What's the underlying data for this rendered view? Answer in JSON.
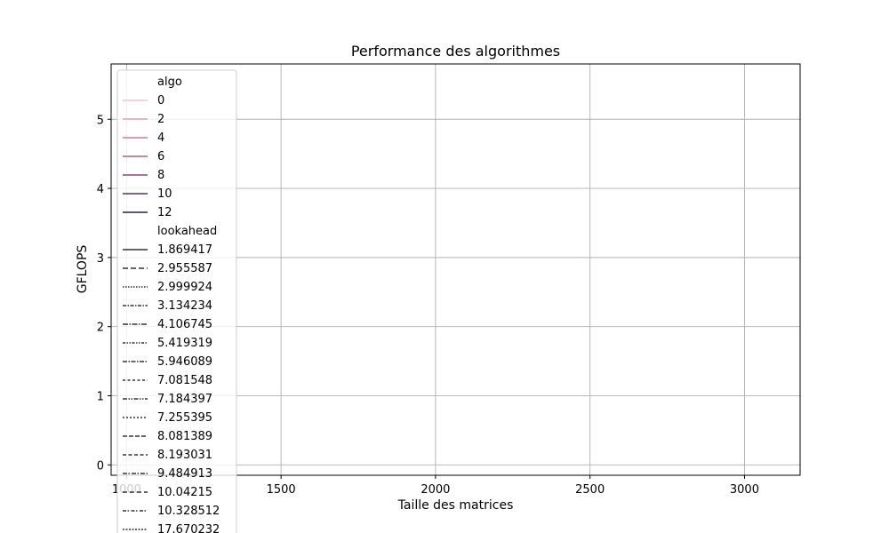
{
  "chart_data": {
    "type": "line",
    "title": "Performance des algorithmes",
    "xlabel": "Taille des matrices",
    "ylabel": "GFLOPS",
    "xlim": [
      950,
      3180
    ],
    "ylim": [
      -0.15,
      5.8
    ],
    "x_ticks": [
      {
        "value": 1000,
        "label": "1000"
      },
      {
        "value": 1500,
        "label": "1500"
      },
      {
        "value": 2000,
        "label": "2000"
      },
      {
        "value": 2500,
        "label": "2500"
      },
      {
        "value": 3000,
        "label": "3000"
      }
    ],
    "y_ticks": [
      {
        "value": 0,
        "label": "0"
      },
      {
        "value": 1,
        "label": "1"
      },
      {
        "value": 2,
        "label": "2"
      },
      {
        "value": 3,
        "label": "3"
      },
      {
        "value": 4,
        "label": "4"
      },
      {
        "value": 5,
        "label": "5"
      }
    ],
    "grid": true,
    "legend_placement": "top-left",
    "series": [],
    "legend": {
      "sections": [
        {
          "title": "algo",
          "entries": [
            {
              "label": "0",
              "color": "#efc6c6",
              "dash": "solid"
            },
            {
              "label": "2",
              "color": "#e3a0a6",
              "dash": "solid"
            },
            {
              "label": "4",
              "color": "#c97f97",
              "dash": "solid"
            },
            {
              "label": "6",
              "color": "#a86286",
              "dash": "solid"
            },
            {
              "label": "8",
              "color": "#844a7a",
              "dash": "solid"
            },
            {
              "label": "10",
              "color": "#5c2f63",
              "dash": "solid"
            },
            {
              "label": "12",
              "color": "#2d1e3e",
              "dash": "solid"
            }
          ]
        },
        {
          "title": "lookahead",
          "entries": [
            {
              "label": "1.869417",
              "color": "#333333",
              "dash": "solid"
            },
            {
              "label": "2.955587",
              "color": "#333333",
              "dash": "6,3"
            },
            {
              "label": "2.999924",
              "color": "#333333",
              "dash": "1.5,1.5"
            },
            {
              "label": "3.134234",
              "color": "#333333",
              "dash": "4,1.5,1.5,1.5"
            },
            {
              "label": "4.106745",
              "color": "#333333",
              "dash": "6,1.5,1.5,1.5"
            },
            {
              "label": "5.419319",
              "color": "#333333",
              "dash": "3,1.5,1.5,1.5,1.5,1.5"
            },
            {
              "label": "5.946089",
              "color": "#333333",
              "dash": "5,1.5,1.5,1.5"
            },
            {
              "label": "7.081548",
              "color": "#333333",
              "dash": "3,2.5"
            },
            {
              "label": "7.184397",
              "color": "#333333",
              "dash": "5,1.5,1.5,1.5,1.5,1.5"
            },
            {
              "label": "7.255395",
              "color": "#333333",
              "dash": "2,2"
            },
            {
              "label": "8.081389",
              "color": "#333333",
              "dash": "5,2"
            },
            {
              "label": "8.193031",
              "color": "#333333",
              "dash": "4,2.5"
            },
            {
              "label": "9.484913",
              "color": "#333333",
              "dash": "5,1.5,1.5,2"
            },
            {
              "label": "10.04215",
              "color": "#333333",
              "dash": "5,3"
            },
            {
              "label": "10.328512",
              "color": "#333333",
              "dash": "4,1.5,1.5,2.5"
            },
            {
              "label": "17.670232",
              "color": "#333333",
              "dash": "2,1.5"
            }
          ]
        }
      ]
    }
  }
}
